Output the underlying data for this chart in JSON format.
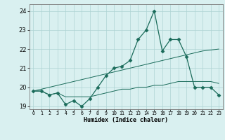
{
  "x": [
    0,
    1,
    2,
    3,
    4,
    5,
    6,
    7,
    8,
    9,
    10,
    11,
    12,
    13,
    14,
    15,
    16,
    17,
    18,
    19,
    20,
    21,
    22,
    23
  ],
  "line1": [
    19.8,
    19.8,
    19.6,
    19.7,
    19.1,
    19.3,
    19.0,
    19.4,
    20.0,
    20.6,
    21.0,
    21.1,
    21.4,
    22.5,
    23.0,
    24.0,
    21.9,
    22.5,
    22.5,
    21.6,
    20.0,
    20.0,
    20.0,
    19.6
  ],
  "line2": [
    19.8,
    19.8,
    19.6,
    19.7,
    19.5,
    19.5,
    19.5,
    19.5,
    19.6,
    19.7,
    19.8,
    19.9,
    19.9,
    20.0,
    20.0,
    20.1,
    20.1,
    20.2,
    20.3,
    20.3,
    20.3,
    20.3,
    20.3,
    20.2
  ],
  "line3": [
    19.8,
    19.9,
    20.0,
    20.1,
    20.2,
    20.3,
    20.4,
    20.5,
    20.6,
    20.7,
    20.8,
    20.9,
    21.0,
    21.1,
    21.2,
    21.3,
    21.4,
    21.5,
    21.6,
    21.7,
    21.8,
    21.9,
    21.95,
    22.0
  ],
  "line_color": "#1a6b5a",
  "bg_color": "#d9f0f0",
  "grid_color": "#aed4d4",
  "xlabel": "Humidex (Indice chaleur)",
  "ylim": [
    18.85,
    24.35
  ],
  "xlim": [
    -0.5,
    23.5
  ],
  "yticks": [
    19,
    20,
    21,
    22,
    23,
    24
  ],
  "xticks": [
    0,
    1,
    2,
    3,
    4,
    5,
    6,
    7,
    8,
    9,
    10,
    11,
    12,
    13,
    14,
    15,
    16,
    17,
    18,
    19,
    20,
    21,
    22,
    23
  ],
  "tick_labels": [
    "0",
    "1",
    "2",
    "3",
    "4",
    "5",
    "6",
    "7",
    "8",
    "9",
    "10",
    "11",
    "12",
    "13",
    "14",
    "15",
    "16",
    "17",
    "18",
    "19",
    "20",
    "21",
    "22",
    "23"
  ],
  "marker": "D",
  "markersize": 2.5,
  "xlabel_fontsize": 6,
  "xtick_fontsize": 4.8,
  "ytick_fontsize": 6
}
